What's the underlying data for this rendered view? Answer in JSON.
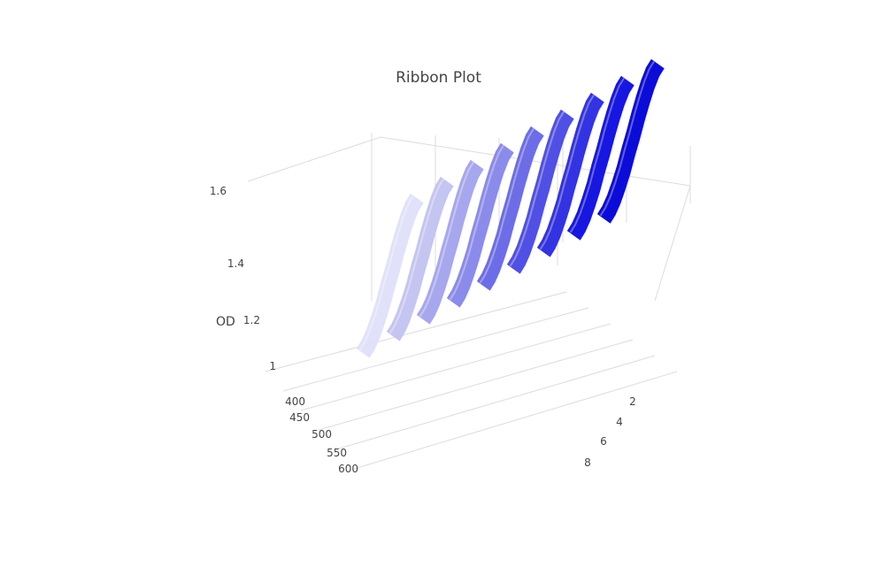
{
  "chart_data": {
    "type": "ribbon-3d",
    "title": "Ribbon Plot",
    "axes": {
      "z": {
        "label": "OD",
        "ticks": [
          "1",
          "1.2",
          "1.4",
          "1.6"
        ]
      },
      "x": {
        "label": "",
        "ticks": [
          "400",
          "450",
          "500",
          "550",
          "600"
        ]
      },
      "y": {
        "label": "",
        "ticks": [
          "2",
          "4",
          "6",
          "8"
        ]
      }
    },
    "ribbons": [
      {
        "index": 1,
        "color": "#e0e0fa"
      },
      {
        "index": 2,
        "color": "#c2c2f2"
      },
      {
        "index": 3,
        "color": "#a3a3ee"
      },
      {
        "index": 4,
        "color": "#8585ea"
      },
      {
        "index": 5,
        "color": "#6666e6"
      },
      {
        "index": 6,
        "color": "#4747e4"
      },
      {
        "index": 7,
        "color": "#2929e2"
      },
      {
        "index": 8,
        "color": "#0b0be0"
      },
      {
        "index": 9,
        "color": "#0000d8"
      }
    ],
    "wavelengths": [
      380,
      400,
      420,
      440,
      460,
      480,
      500,
      520,
      540,
      560,
      580,
      600
    ],
    "od_profile": [
      1.55,
      1.54,
      1.5,
      1.44,
      1.37,
      1.29,
      1.22,
      1.14,
      1.08,
      1.03,
      1.0,
      0.99
    ],
    "background": "#ffffff",
    "grid": true
  }
}
